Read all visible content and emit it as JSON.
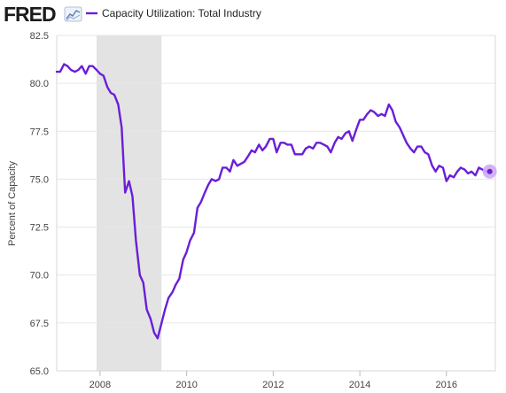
{
  "brand": "FRED",
  "colors": {
    "series": "#6a1ed8",
    "highlight": "#cfaaf6",
    "recession": "#e3e3e3",
    "grid": "#e6e6e6",
    "border": "#d7d7d7"
  },
  "chart_data": {
    "type": "line",
    "title": "",
    "xlabel": "",
    "ylabel": "Percent of Capacity",
    "xlim": [
      2007.0,
      2017.13
    ],
    "ylim": [
      65.0,
      82.5
    ],
    "yticks": [
      65.0,
      67.5,
      70.0,
      72.5,
      75.0,
      77.5,
      80.0,
      82.5
    ],
    "ytick_labels": [
      "65.0",
      "67.5",
      "70.0",
      "72.5",
      "75.0",
      "77.5",
      "80.0",
      "82.5"
    ],
    "xticks": [
      2008,
      2010,
      2012,
      2014,
      2016
    ],
    "xtick_labels": [
      "2008",
      "2010",
      "2012",
      "2014",
      "2016"
    ],
    "grid": true,
    "legend_position": "top-left",
    "recession_periods": [
      [
        2007.92,
        2009.42
      ]
    ],
    "series": [
      {
        "name": "Capacity Utilization: Total Industry",
        "x": [
          2007.0,
          2007.08,
          2007.17,
          2007.25,
          2007.33,
          2007.42,
          2007.5,
          2007.58,
          2007.67,
          2007.75,
          2007.83,
          2007.92,
          2008.0,
          2008.08,
          2008.17,
          2008.25,
          2008.33,
          2008.42,
          2008.5,
          2008.58,
          2008.67,
          2008.75,
          2008.83,
          2008.92,
          2009.0,
          2009.08,
          2009.17,
          2009.25,
          2009.33,
          2009.42,
          2009.5,
          2009.58,
          2009.67,
          2009.75,
          2009.83,
          2009.92,
          2010.0,
          2010.08,
          2010.17,
          2010.25,
          2010.33,
          2010.42,
          2010.5,
          2010.58,
          2010.67,
          2010.75,
          2010.83,
          2010.92,
          2011.0,
          2011.08,
          2011.17,
          2011.25,
          2011.33,
          2011.42,
          2011.5,
          2011.58,
          2011.67,
          2011.75,
          2011.83,
          2011.92,
          2012.0,
          2012.08,
          2012.17,
          2012.25,
          2012.33,
          2012.42,
          2012.5,
          2012.58,
          2012.67,
          2012.75,
          2012.83,
          2012.92,
          2013.0,
          2013.08,
          2013.17,
          2013.25,
          2013.33,
          2013.42,
          2013.5,
          2013.58,
          2013.67,
          2013.75,
          2013.83,
          2013.92,
          2014.0,
          2014.08,
          2014.17,
          2014.25,
          2014.33,
          2014.42,
          2014.5,
          2014.58,
          2014.67,
          2014.75,
          2014.83,
          2014.92,
          2015.0,
          2015.08,
          2015.17,
          2015.25,
          2015.33,
          2015.42,
          2015.5,
          2015.58,
          2015.67,
          2015.75,
          2015.83,
          2015.92,
          2016.0,
          2016.08,
          2016.17,
          2016.25,
          2016.33,
          2016.42,
          2016.5,
          2016.58,
          2016.67,
          2016.75,
          2016.83,
          2016.92,
          2017.0
        ],
        "values": [
          80.6,
          80.6,
          81.0,
          80.9,
          80.7,
          80.6,
          80.7,
          80.9,
          80.5,
          80.9,
          80.9,
          80.7,
          80.5,
          80.4,
          79.8,
          79.5,
          79.4,
          78.9,
          77.7,
          74.3,
          74.9,
          74.1,
          71.8,
          70.0,
          69.6,
          68.2,
          67.7,
          67.0,
          66.7,
          67.5,
          68.2,
          68.8,
          69.1,
          69.5,
          69.8,
          70.8,
          71.2,
          71.8,
          72.2,
          73.5,
          73.8,
          74.3,
          74.7,
          75.0,
          74.9,
          75.0,
          75.6,
          75.6,
          75.4,
          76.0,
          75.7,
          75.8,
          75.9,
          76.2,
          76.5,
          76.4,
          76.8,
          76.5,
          76.7,
          77.1,
          77.1,
          76.4,
          76.9,
          76.9,
          76.8,
          76.8,
          76.3,
          76.3,
          76.3,
          76.6,
          76.7,
          76.6,
          76.9,
          76.9,
          76.8,
          76.7,
          76.4,
          76.9,
          77.2,
          77.1,
          77.4,
          77.5,
          77.0,
          77.6,
          78.1,
          78.1,
          78.4,
          78.6,
          78.5,
          78.3,
          78.4,
          78.3,
          78.9,
          78.6,
          78.0,
          77.7,
          77.3,
          76.9,
          76.6,
          76.4,
          76.7,
          76.7,
          76.4,
          76.3,
          75.7,
          75.4,
          75.7,
          75.6,
          74.9,
          75.2,
          75.1,
          75.4,
          75.6,
          75.5,
          75.3,
          75.4,
          75.2,
          75.6,
          75.5,
          75.4,
          75.4
        ]
      }
    ]
  }
}
